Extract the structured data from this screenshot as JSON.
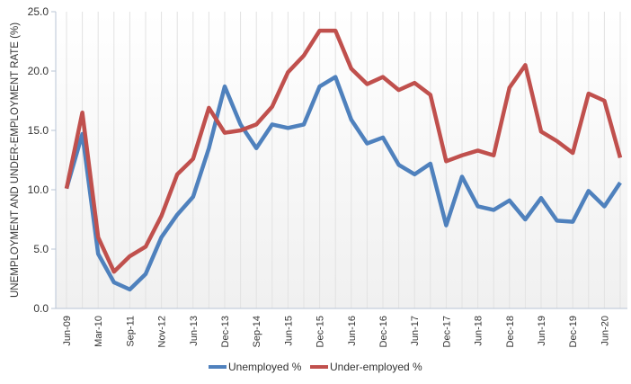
{
  "chart_data": {
    "type": "line",
    "title": "",
    "xlabel": "",
    "ylabel": "UNEMPLOYMENT AND UNDER-EMPLOYMENT RATE (%)",
    "ylim": [
      0,
      25
    ],
    "yticks": [
      "0.0",
      "5.0",
      "10.0",
      "15.0",
      "20.0",
      "25.0"
    ],
    "grid": "vertical",
    "legend_position": "bottom",
    "categories": [
      "Jun-09",
      "",
      "Mar-10",
      "",
      "Sep-11",
      "",
      "Nov-12",
      "",
      "Jun-13",
      "",
      "Dec-13",
      "",
      "Sep-14",
      "",
      "Jun-15",
      "",
      "Dec-15",
      "",
      "Jun-16",
      "",
      "Dec-16",
      "",
      "Jun-17",
      "",
      "Dec-17",
      "",
      "Jun-18",
      "",
      "Dec-18",
      "",
      "Jun-19",
      "",
      "Dec-19",
      "",
      "Jun-20",
      ""
    ],
    "series": [
      {
        "name": "Unemployed %",
        "color": "#4f81bd",
        "values": [
          10.1,
          14.7,
          4.6,
          2.2,
          1.6,
          2.9,
          6.0,
          7.9,
          9.4,
          13.5,
          18.7,
          15.5,
          13.5,
          15.5,
          15.2,
          15.5,
          18.7,
          19.5,
          15.9,
          13.9,
          14.4,
          12.1,
          11.3,
          12.2,
          7.0,
          11.1,
          8.6,
          8.3,
          9.1,
          7.5,
          9.3,
          7.4,
          7.3,
          9.9,
          8.6,
          10.6
        ]
      },
      {
        "name": "Under-employed %",
        "color": "#c0504d",
        "values": [
          10.1,
          16.5,
          6.0,
          3.1,
          4.4,
          5.2,
          7.8,
          11.3,
          12.6,
          16.9,
          14.8,
          15.0,
          15.5,
          17.0,
          19.9,
          21.3,
          23.4,
          23.4,
          20.2,
          18.9,
          19.5,
          18.4,
          19.0,
          18.0,
          12.4,
          12.9,
          13.3,
          12.9,
          18.6,
          20.5,
          14.9,
          14.1,
          13.1,
          18.1,
          17.5,
          12.7
        ]
      }
    ]
  }
}
